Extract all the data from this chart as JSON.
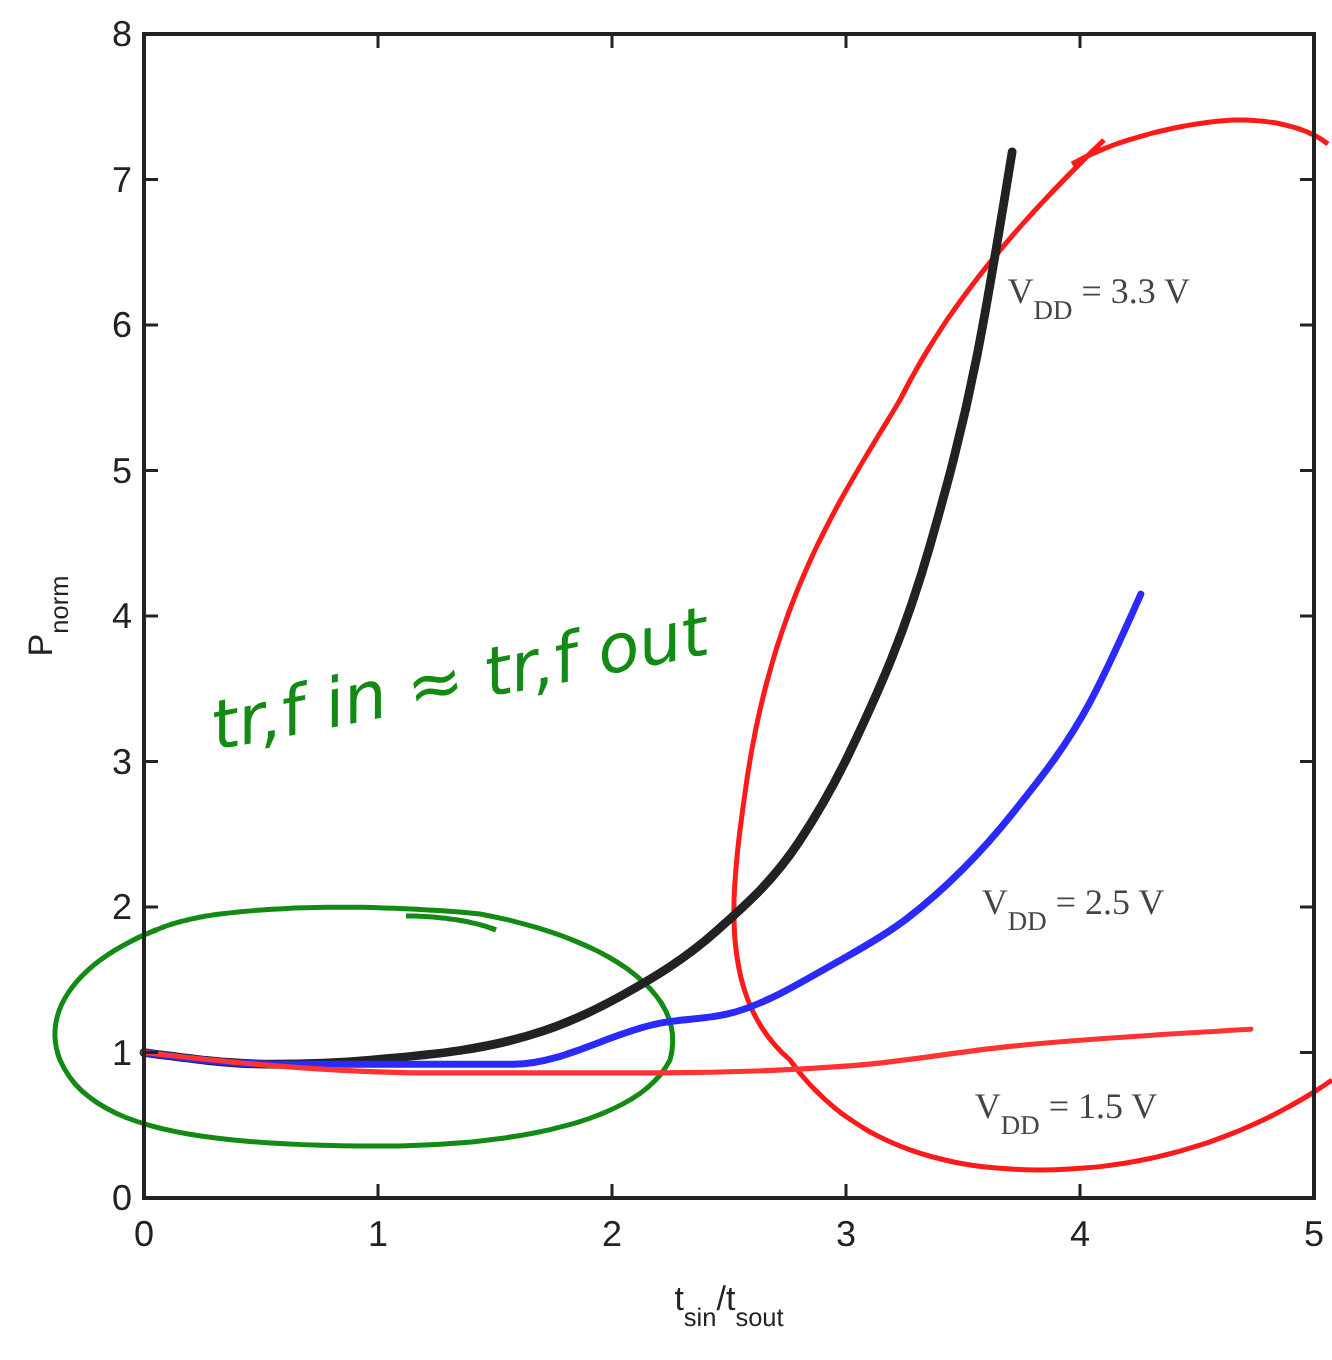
{
  "chart_data": {
    "type": "line",
    "xlabel": "t$_{sin}$/t$_{sout}$",
    "ylabel": "P$_{norm}$",
    "xlim": [
      0,
      5
    ],
    "xticks": [
      0,
      1,
      2,
      3,
      4,
      5
    ],
    "ylim": [
      0,
      8
    ],
    "yticks": [
      0,
      1,
      2,
      3,
      4,
      5,
      6,
      7,
      8
    ],
    "grid": false,
    "legend": false,
    "annotations": [
      "tr,f in ≈ tr,f out"
    ],
    "series": [
      {
        "name": "V$_{DD}$ = 3.3 V",
        "color": "#222222",
        "x": [
          0,
          0.55,
          0.98,
          1.71,
          2.04,
          2.45,
          2.8,
          3.03,
          3.36,
          3.56,
          3.71
        ],
        "values": [
          1.0,
          0.92,
          0.95,
          1.15,
          1.39,
          1.84,
          2.45,
          3.11,
          4.49,
          5.79,
          7.19
        ]
      },
      {
        "name": "V$_{DD}$ = 2.5 V",
        "color": "#2a2aff",
        "x": [
          0,
          0.55,
          1.58,
          2.2,
          2.53,
          2.96,
          3.26,
          3.72,
          4.04,
          4.26
        ],
        "values": [
          1.0,
          0.92,
          0.92,
          1.2,
          1.28,
          1.62,
          1.92,
          2.66,
          3.4,
          4.15
        ]
      },
      {
        "name": "V$_{DD}$ = 1.5 V",
        "color": "#ff3333",
        "x": [
          0,
          0.55,
          1.21,
          2.2,
          3.03,
          3.69,
          4.73
        ],
        "values": [
          1.0,
          0.91,
          0.86,
          0.86,
          0.91,
          1.04,
          1.16
        ]
      }
    ]
  }
}
